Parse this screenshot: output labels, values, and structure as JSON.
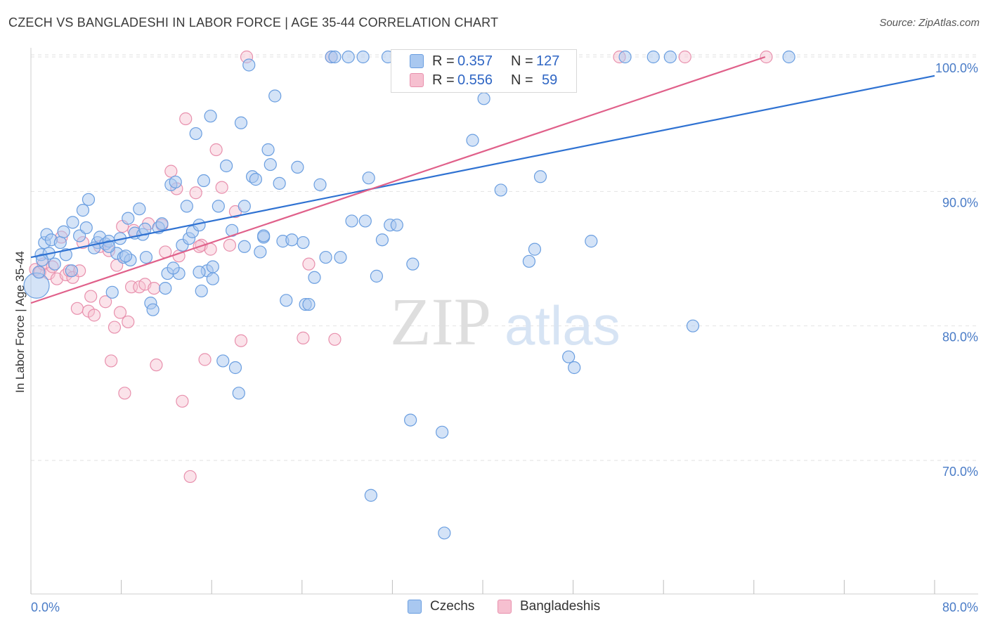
{
  "header": {
    "title": "CZECH VS BANGLADESHI IN LABOR FORCE | AGE 35-44 CORRELATION CHART",
    "source": "Source: ZipAtlas.com"
  },
  "watermark": {
    "zip": "ZIP",
    "atlas": "atlas"
  },
  "legend_top": {
    "row1": {
      "r_label": "R =",
      "r_value": "0.357",
      "n_label": "N =",
      "n_value": "127"
    },
    "row2": {
      "r_label": "R =",
      "r_value": "0.556",
      "n_label": "N =",
      "n_value": "59"
    }
  },
  "legend_bottom": {
    "czechs": "Czechs",
    "bangladeshis": "Bangladeshis"
  },
  "colors": {
    "czech_fill": "#a9c8f0",
    "czech_stroke": "#6a9ee0",
    "czech_line": "#2f72d2",
    "bang_fill": "#f6c0d0",
    "bang_stroke": "#e890ad",
    "bang_line": "#e0608a",
    "grid": "#e2e2e2",
    "tick_text": "#4a7cc7"
  },
  "chart_data": {
    "type": "scatter",
    "title": "CZECH VS BANGLADESHI IN LABOR FORCE | AGE 35-44 CORRELATION CHART",
    "xlabel": "",
    "ylabel": "In Labor Force | Age 35-44",
    "xlim": [
      0,
      80
    ],
    "ylim": [
      60,
      102
    ],
    "x_tick_labels": [
      "0.0%",
      "80.0%"
    ],
    "y_ticks": [
      70,
      80,
      90,
      100
    ],
    "y_tick_labels": [
      "70.0%",
      "80.0%",
      "90.0%",
      "100.0%"
    ],
    "grid": true,
    "legend_position": "top-center",
    "series": [
      {
        "name": "Czechs",
        "r": 0.357,
        "n": 127,
        "trend": {
          "x0": 0,
          "y0": 85.1,
          "x1": 80,
          "y1": 98.6
        },
        "points": [
          [
            0.5,
            83.0
          ],
          [
            0.9,
            85.3
          ],
          [
            1.2,
            86.2
          ],
          [
            1.4,
            86.8
          ],
          [
            1.8,
            86.4
          ],
          [
            2.6,
            86.2
          ],
          [
            3.1,
            85.3
          ],
          [
            3.7,
            87.7
          ],
          [
            4.3,
            86.7
          ],
          [
            4.6,
            88.6
          ],
          [
            4.9,
            87.3
          ],
          [
            5.1,
            89.4
          ],
          [
            5.9,
            86.2
          ],
          [
            6.1,
            86.6
          ],
          [
            6.6,
            86.1
          ],
          [
            6.9,
            86.3
          ],
          [
            7.2,
            82.5
          ],
          [
            7.6,
            85.4
          ],
          [
            7.9,
            86.5
          ],
          [
            8.2,
            85.1
          ],
          [
            8.6,
            88.0
          ],
          [
            8.8,
            84.9
          ],
          [
            9.2,
            86.9
          ],
          [
            9.6,
            88.7
          ],
          [
            9.9,
            86.8
          ],
          [
            10.2,
            85.1
          ],
          [
            10.6,
            81.7
          ],
          [
            10.8,
            81.2
          ],
          [
            11.3,
            87.3
          ],
          [
            11.6,
            87.6
          ],
          [
            11.9,
            82.8
          ],
          [
            12.1,
            83.9
          ],
          [
            12.4,
            90.5
          ],
          [
            12.8,
            90.7
          ],
          [
            13.1,
            83.9
          ],
          [
            13.4,
            86.0
          ],
          [
            13.8,
            88.9
          ],
          [
            14.0,
            86.5
          ],
          [
            14.3,
            87.0
          ],
          [
            14.6,
            94.3
          ],
          [
            14.9,
            87.5
          ],
          [
            15.1,
            82.6
          ],
          [
            15.3,
            90.8
          ],
          [
            15.6,
            84.1
          ],
          [
            15.9,
            95.6
          ],
          [
            16.1,
            83.5
          ],
          [
            16.6,
            88.9
          ],
          [
            17.0,
            77.4
          ],
          [
            17.3,
            91.9
          ],
          [
            17.8,
            87.1
          ],
          [
            18.1,
            76.9
          ],
          [
            18.4,
            75.0
          ],
          [
            18.6,
            95.1
          ],
          [
            18.9,
            88.9
          ],
          [
            19.3,
            99.4
          ],
          [
            19.6,
            91.1
          ],
          [
            19.9,
            90.9
          ],
          [
            20.3,
            85.5
          ],
          [
            20.6,
            86.6
          ],
          [
            21.0,
            93.1
          ],
          [
            21.2,
            92.0
          ],
          [
            21.6,
            97.1
          ],
          [
            22.0,
            90.6
          ],
          [
            22.3,
            86.3
          ],
          [
            22.6,
            81.9
          ],
          [
            23.1,
            86.4
          ],
          [
            23.6,
            91.8
          ],
          [
            24.3,
            81.6
          ],
          [
            24.6,
            81.6
          ],
          [
            25.1,
            83.6
          ],
          [
            25.6,
            90.5
          ],
          [
            26.6,
            100.0
          ],
          [
            26.9,
            100.0
          ],
          [
            27.4,
            85.1
          ],
          [
            28.1,
            100.0
          ],
          [
            28.4,
            87.8
          ],
          [
            29.4,
            100.0
          ],
          [
            29.6,
            87.8
          ],
          [
            29.9,
            91.0
          ],
          [
            30.6,
            83.7
          ],
          [
            31.1,
            86.4
          ],
          [
            31.6,
            100.0
          ],
          [
            31.8,
            87.5
          ],
          [
            32.4,
            87.5
          ],
          [
            33.6,
            100.0
          ],
          [
            33.8,
            84.6
          ],
          [
            33.6,
            73.0
          ],
          [
            35.1,
            100.0
          ],
          [
            36.1,
            100.0
          ],
          [
            36.4,
            72.1
          ],
          [
            36.6,
            64.6
          ],
          [
            38.1,
            100.0
          ],
          [
            39.1,
            93.8
          ],
          [
            40.1,
            96.9
          ],
          [
            40.6,
            100.0
          ],
          [
            41.6,
            90.1
          ],
          [
            43.6,
            100.0
          ],
          [
            44.1,
            84.8
          ],
          [
            44.6,
            85.7
          ],
          [
            45.1,
            91.1
          ],
          [
            47.1,
            100.0
          ],
          [
            47.6,
            77.7
          ],
          [
            48.1,
            76.9
          ],
          [
            49.6,
            86.3
          ],
          [
            52.6,
            100.0
          ],
          [
            55.1,
            100.0
          ],
          [
            56.6,
            100.0
          ],
          [
            58.6,
            80.0
          ],
          [
            67.1,
            100.0
          ],
          [
            30.1,
            67.4
          ],
          [
            12.6,
            84.3
          ],
          [
            16.1,
            84.4
          ],
          [
            5.6,
            85.8
          ],
          [
            2.1,
            84.6
          ],
          [
            3.6,
            84.1
          ],
          [
            6.9,
            85.9
          ],
          [
            10.1,
            87.2
          ],
          [
            14.9,
            84.0
          ],
          [
            24.1,
            86.2
          ],
          [
            20.6,
            86.7
          ],
          [
            18.9,
            85.9
          ],
          [
            8.4,
            85.2
          ],
          [
            1.6,
            85.4
          ],
          [
            2.9,
            87.0
          ],
          [
            1.0,
            84.9
          ],
          [
            0.7,
            84.0
          ],
          [
            26.1,
            85.1
          ]
        ]
      },
      {
        "name": "Bangladeshis",
        "r": 0.556,
        "n": 59,
        "trend": {
          "x0": 0,
          "y0": 81.7,
          "x1": 65,
          "y1": 100.0
        },
        "points": [
          [
            0.4,
            84.2
          ],
          [
            0.8,
            84.0
          ],
          [
            1.1,
            84.6
          ],
          [
            1.6,
            83.9
          ],
          [
            1.9,
            84.4
          ],
          [
            2.3,
            83.5
          ],
          [
            2.7,
            86.6
          ],
          [
            3.1,
            83.8
          ],
          [
            3.4,
            84.1
          ],
          [
            3.7,
            83.6
          ],
          [
            4.1,
            81.3
          ],
          [
            4.3,
            84.1
          ],
          [
            4.6,
            86.2
          ],
          [
            5.1,
            81.1
          ],
          [
            5.3,
            82.2
          ],
          [
            5.6,
            80.8
          ],
          [
            6.1,
            85.9
          ],
          [
            6.6,
            81.8
          ],
          [
            6.9,
            85.6
          ],
          [
            7.1,
            77.4
          ],
          [
            7.4,
            79.9
          ],
          [
            7.6,
            84.5
          ],
          [
            7.9,
            81.0
          ],
          [
            8.1,
            87.4
          ],
          [
            8.3,
            75.0
          ],
          [
            8.6,
            80.3
          ],
          [
            8.9,
            82.9
          ],
          [
            9.1,
            87.1
          ],
          [
            9.6,
            82.9
          ],
          [
            10.1,
            83.1
          ],
          [
            10.4,
            87.6
          ],
          [
            10.9,
            82.8
          ],
          [
            11.1,
            77.1
          ],
          [
            11.6,
            87.5
          ],
          [
            11.9,
            85.5
          ],
          [
            12.4,
            91.5
          ],
          [
            12.9,
            90.2
          ],
          [
            13.4,
            74.4
          ],
          [
            13.7,
            95.4
          ],
          [
            14.1,
            68.8
          ],
          [
            14.6,
            89.9
          ],
          [
            15.1,
            86.0
          ],
          [
            15.4,
            77.5
          ],
          [
            15.9,
            85.7
          ],
          [
            16.4,
            93.1
          ],
          [
            16.9,
            90.3
          ],
          [
            17.6,
            86.0
          ],
          [
            18.1,
            88.5
          ],
          [
            18.6,
            78.9
          ],
          [
            19.1,
            100.0
          ],
          [
            24.1,
            79.1
          ],
          [
            24.6,
            84.6
          ],
          [
            26.6,
            100.0
          ],
          [
            26.9,
            79.0
          ],
          [
            13.1,
            85.2
          ],
          [
            14.9,
            85.9
          ],
          [
            52.1,
            100.0
          ],
          [
            57.9,
            100.0
          ],
          [
            65.1,
            100.0
          ]
        ]
      }
    ]
  }
}
